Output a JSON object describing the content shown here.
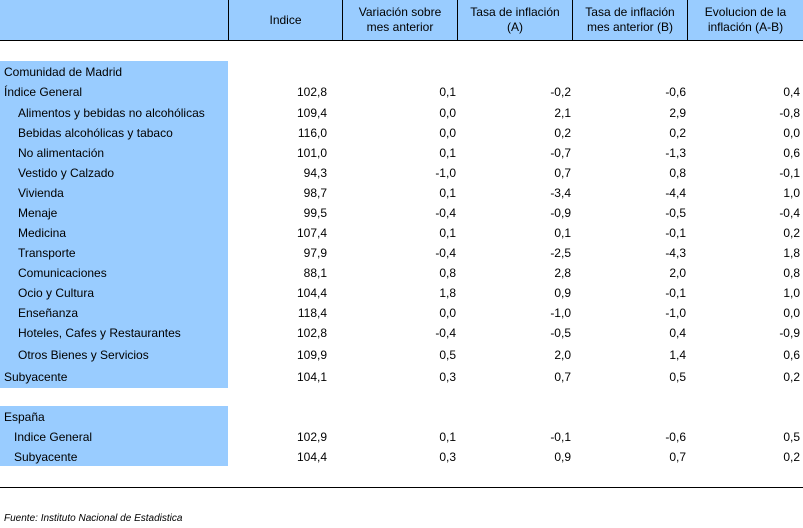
{
  "header": {
    "col1": "Indice",
    "col2_line1": "Variación sobre",
    "col2_line2": "mes anterior",
    "col3_line1": "Tasa de inflación",
    "col3_line2": "(A)",
    "col4_line1": "Tasa de inflación",
    "col4_line2": "mes anterior (B)",
    "col5_line1": "Evolucion de la",
    "col5_line2": "inflación (A-B)"
  },
  "madrid": {
    "section_label": "Comunidad de Madrid",
    "rows": [
      {
        "label": "Índice General",
        "v": [
          "102,8",
          "0,1",
          "-0,2",
          "-0,6",
          "0,4"
        ]
      },
      {
        "label": "Alimentos y bebidas no alcohólicas",
        "v": [
          "109,4",
          "0,0",
          "2,1",
          "2,9",
          "-0,8"
        ]
      },
      {
        "label": "Bebidas alcohólicas y tabaco",
        "v": [
          "116,0",
          "0,0",
          "0,2",
          "0,2",
          "0,0"
        ]
      },
      {
        "label": "No alimentación",
        "v": [
          "101,0",
          "0,1",
          "-0,7",
          "-1,3",
          "0,6"
        ]
      },
      {
        "label": "Vestido y Calzado",
        "v": [
          "94,3",
          "-1,0",
          "0,7",
          "0,8",
          "-0,1"
        ]
      },
      {
        "label": "Vivienda",
        "v": [
          "98,7",
          "0,1",
          "-3,4",
          "-4,4",
          "1,0"
        ]
      },
      {
        "label": "Menaje",
        "v": [
          "99,5",
          "-0,4",
          "-0,9",
          "-0,5",
          "-0,4"
        ]
      },
      {
        "label": "Medicina",
        "v": [
          "107,4",
          "0,1",
          "0,1",
          "-0,1",
          "0,2"
        ]
      },
      {
        "label": "Transporte",
        "v": [
          "97,9",
          "-0,4",
          "-2,5",
          "-4,3",
          "1,8"
        ]
      },
      {
        "label": "Comunicaciones",
        "v": [
          "88,1",
          "0,8",
          "2,8",
          "2,0",
          "0,8"
        ]
      },
      {
        "label": "Ocio y Cultura",
        "v": [
          "104,4",
          "1,8",
          "0,9",
          "-0,1",
          "1,0"
        ]
      },
      {
        "label": "Enseñanza",
        "v": [
          "118,4",
          "0,0",
          "-1,0",
          "-1,0",
          "0,0"
        ]
      },
      {
        "label": "Hoteles, Cafes y Restaurantes",
        "v": [
          "102,8",
          "-0,4",
          "-0,5",
          "0,4",
          "-0,9"
        ]
      },
      {
        "label": "Otros Bienes y Servicios",
        "v": [
          "109,9",
          "0,5",
          "2,0",
          "1,4",
          "0,6"
        ]
      },
      {
        "label": "Subyacente",
        "v": [
          "104,1",
          "0,3",
          "0,7",
          "0,5",
          "0,2"
        ]
      }
    ]
  },
  "spain": {
    "section_label": "España",
    "rows": [
      {
        "label": "Indice General",
        "v": [
          "102,9",
          "0,1",
          "-0,1",
          "-0,6",
          "0,5"
        ]
      },
      {
        "label": "Subyacente",
        "v": [
          "104,4",
          "0,3",
          "0,9",
          "0,7",
          "0,2"
        ]
      }
    ]
  },
  "footer": "Fuente: Instituto Nacional de Estadistica",
  "colors": {
    "header_bg": "#99ccff",
    "label_bg": "#99ccff"
  }
}
